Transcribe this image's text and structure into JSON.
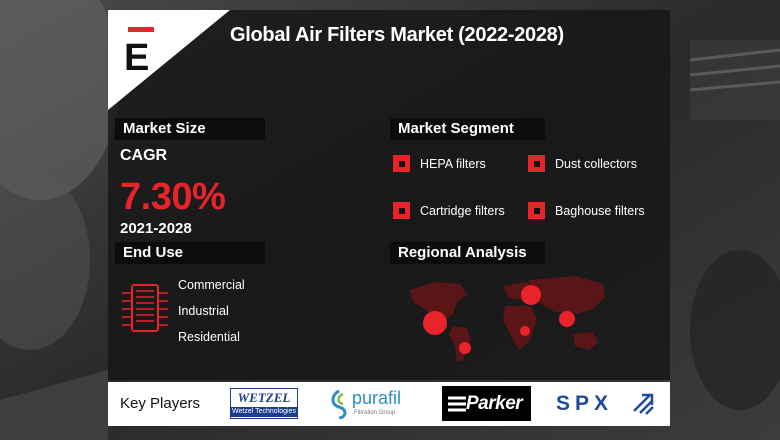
{
  "title": "Global Air Filters Market (2022-2028)",
  "brand_letter": "E",
  "colors": {
    "accent": "#e8232a",
    "bar": "#0c0c0c",
    "panel": "#141414"
  },
  "market_size": {
    "header": "Market Size",
    "cagr_label": "CAGR",
    "cagr_value": "7.30%",
    "years": "2021-2028"
  },
  "end_use": {
    "header": "End Use",
    "icon": "air-filter-icon",
    "items": [
      "Commercial",
      "Industrial",
      "Residential"
    ]
  },
  "market_segment": {
    "header": "Market Segment",
    "items": [
      "HEPA filters",
      "Dust collectors",
      "Cartridge filters",
      "Baghouse filters"
    ]
  },
  "regional": {
    "header": "Regional Analysis",
    "icon": "world-map-icon"
  },
  "key_players": {
    "label": "Key Players",
    "logos": {
      "wetzel_name": "WETZEL",
      "wetzel_sub": "Wetzel Technologies",
      "purafil_name": "purafil",
      "purafil_sub": "Filtration Group",
      "parker_name": "Parker",
      "spx_name": "SPX"
    }
  }
}
